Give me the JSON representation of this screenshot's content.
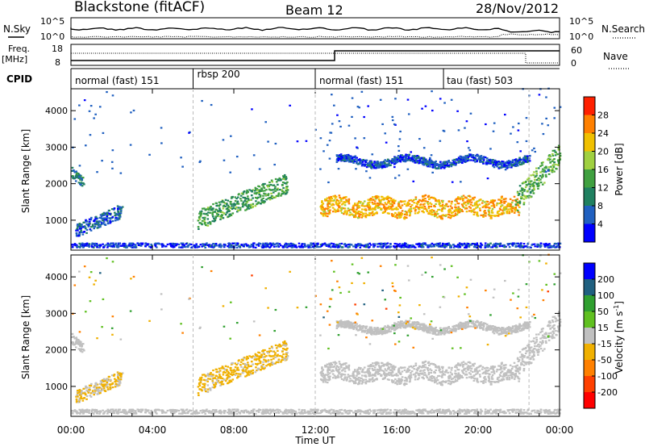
{
  "header": {
    "station": "Blackstone (fitACF)",
    "beam": "Beam 12",
    "date": "28/Nov/2012"
  },
  "noise_panel": {
    "left_label": "N.Sky",
    "right_label": "N.Search",
    "left_ticks": [
      "10^5",
      "10^0"
    ],
    "right_ticks": [
      "10^5",
      "10^0"
    ]
  },
  "freq_panel": {
    "left_label": "Freq.",
    "left_unit": "[MHz]",
    "right_label": "Nave",
    "left_ticks": [
      "18",
      "8"
    ],
    "right_ticks": [
      "60",
      "0"
    ]
  },
  "cpid": {
    "label": "CPID",
    "segments": [
      {
        "name": "normal (fast) 151",
        "start_h": 0,
        "end_h": 6
      },
      {
        "name": "rbsp 200",
        "start_h": 6,
        "end_h": 12
      },
      {
        "name": "normal (fast) 151",
        "start_h": 12,
        "end_h": 18.3
      },
      {
        "name": "tau (fast) 503",
        "start_h": 18.3,
        "end_h": 24
      }
    ]
  },
  "time_axis": {
    "label": "Time UT",
    "ticks": [
      "00:00",
      "04:00",
      "08:00",
      "12:00",
      "16:00",
      "20:00",
      "00:00"
    ],
    "tick_hours": [
      0,
      4,
      8,
      12,
      16,
      20,
      24
    ]
  },
  "power_panel": {
    "ylabel": "Slant Range [km]",
    "yticks": [
      "1000",
      "2000",
      "3000",
      "4000"
    ],
    "colorbar_label": "Power [dB]",
    "colorbar_ticks": [
      "4",
      "8",
      "12",
      "16",
      "20",
      "24",
      "28"
    ]
  },
  "velocity_panel": {
    "ylabel": "Slant Range [km]",
    "yticks": [
      "1000",
      "2000",
      "3000",
      "4000"
    ],
    "colorbar_label": "Velocity [m s",
    "colorbar_label_sup": "-1",
    "colorbar_label_end": "]",
    "colorbar_ticks": [
      "200",
      "100",
      "50",
      "15",
      "-15",
      "-50",
      "-100",
      "-200"
    ]
  },
  "chart_data": {
    "type": "heatmap",
    "x_range_hours": [
      0,
      24
    ],
    "y_range_km": [
      180,
      4600
    ],
    "power_scale_db": [
      0,
      30
    ],
    "velocity_scale": [
      -250,
      250
    ],
    "power_colors": [
      "#0000ff",
      "#2060c0",
      "#208060",
      "#40a040",
      "#a0d040",
      "#f0c000",
      "#ff8000",
      "#ff2000"
    ],
    "velocity_colors": [
      "#0000ff",
      "#206080",
      "#30a030",
      "#60c020",
      "#c0c0c0",
      "#f0b000",
      "#ff8000",
      "#ff4000",
      "#ff0000"
    ],
    "regions": [
      {
        "name": "early-patch",
        "t_start": 0,
        "t_end": 0.6,
        "r_low": 2300,
        "r_high": 2000,
        "power_db": 8,
        "velocity": 5
      },
      {
        "name": "near-range-arc",
        "t_start": 0.2,
        "t_end": 2.5,
        "r_low": 700,
        "r_high": 1250,
        "power_db": 6,
        "velocity": -30
      },
      {
        "name": "rbsp-band",
        "t_start": 6.2,
        "t_end": 10.6,
        "r_low": 1000,
        "r_high": 2000,
        "power_db": 12,
        "velocity": -40
      },
      {
        "name": "main-band",
        "t_start": 12.2,
        "t_end": 22.0,
        "r_low": 1000,
        "r_high": 1900,
        "power_db": 22,
        "velocity": 0
      },
      {
        "name": "upper-echo",
        "t_start": 13,
        "t_end": 22.5,
        "r_low": 2500,
        "r_high": 2800,
        "power_db": 5,
        "velocity": 0
      },
      {
        "name": "late-rise",
        "t_start": 21.8,
        "t_end": 24,
        "r_low": 1500,
        "r_high": 2800,
        "power_db": 14,
        "velocity": -5
      },
      {
        "name": "ground-scatter",
        "t_start": 0,
        "t_end": 24,
        "r_low": 200,
        "r_high": 400,
        "power_db": 4,
        "velocity": 0
      }
    ]
  }
}
